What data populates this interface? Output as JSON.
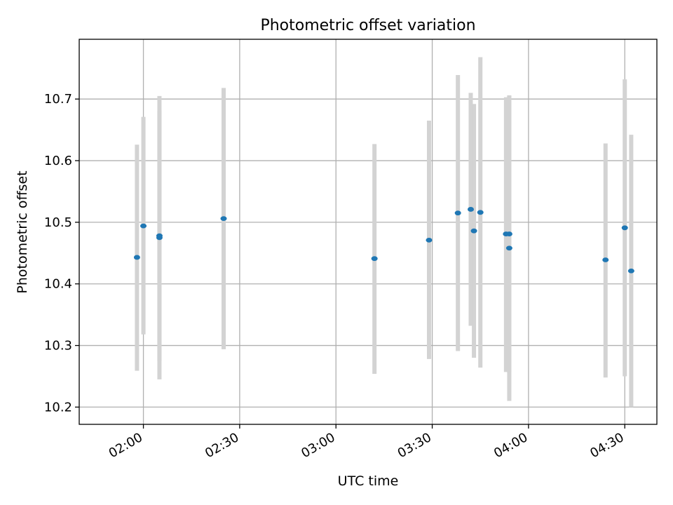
{
  "chart_data": {
    "type": "scatter",
    "title": "Photometric offset variation",
    "xlabel": "UTC time",
    "ylabel": "Photometric offset",
    "x_unit": "UTC time of day",
    "xlim": [
      "01:40",
      "04:40"
    ],
    "ylim": [
      10.172,
      10.797
    ],
    "grid": true,
    "colors": {
      "points": "#1f77b4",
      "errorbars": "#d3d3d3",
      "grid": "#b0b0b0"
    },
    "x_ticks": [
      "02:00",
      "02:30",
      "03:00",
      "03:30",
      "04:00",
      "04:30"
    ],
    "y_ticks": [
      "10.2",
      "10.3",
      "10.4",
      "10.5",
      "10.6",
      "10.7"
    ],
    "points": [
      {
        "x": "01:58",
        "y": 10.443,
        "err_low": 10.259,
        "err_high": 10.626
      },
      {
        "x": "02:00",
        "y": 10.494,
        "err_low": 10.318,
        "err_high": 10.671
      },
      {
        "x": "02:05",
        "y": 10.475,
        "err_low": 10.245,
        "err_high": 10.705
      },
      {
        "x": "02:05",
        "y": 10.478,
        "err_low": 10.275,
        "err_high": 10.681
      },
      {
        "x": "02:25",
        "y": 10.506,
        "err_low": 10.294,
        "err_high": 10.718
      },
      {
        "x": "03:12",
        "y": 10.441,
        "err_low": 10.254,
        "err_high": 10.627
      },
      {
        "x": "03:29",
        "y": 10.471,
        "err_low": 10.278,
        "err_high": 10.665
      },
      {
        "x": "03:38",
        "y": 10.515,
        "err_low": 10.291,
        "err_high": 10.739
      },
      {
        "x": "03:42",
        "y": 10.521,
        "err_low": 10.332,
        "err_high": 10.71
      },
      {
        "x": "03:43",
        "y": 10.486,
        "err_low": 10.28,
        "err_high": 10.692
      },
      {
        "x": "03:45",
        "y": 10.516,
        "err_low": 10.264,
        "err_high": 10.768
      },
      {
        "x": "03:53",
        "y": 10.481,
        "err_low": 10.257,
        "err_high": 10.703
      },
      {
        "x": "03:54",
        "y": 10.481,
        "err_low": 10.256,
        "err_high": 10.705
      },
      {
        "x": "03:54",
        "y": 10.458,
        "err_low": 10.21,
        "err_high": 10.706
      },
      {
        "x": "04:24",
        "y": 10.439,
        "err_low": 10.248,
        "err_high": 10.628
      },
      {
        "x": "04:30",
        "y": 10.491,
        "err_low": 10.25,
        "err_high": 10.732
      },
      {
        "x": "04:32",
        "y": 10.421,
        "err_low": 10.2,
        "err_high": 10.642
      }
    ]
  }
}
